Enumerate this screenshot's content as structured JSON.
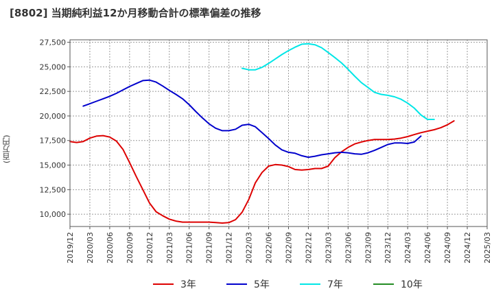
{
  "chart_data": {
    "type": "line",
    "title": "[8802]  当期純利益12か月移動合計の標準偏差の推移",
    "ylabel": "(百万円)",
    "xlabel": "",
    "ylim": [
      8750,
      27750
    ],
    "yticks": [
      10000,
      12500,
      15000,
      17500,
      20000,
      22500,
      25000,
      27500
    ],
    "ytick_labels": [
      "10,000",
      "12,500",
      "15,000",
      "17,500",
      "20,000",
      "22,500",
      "25,000",
      "27,500"
    ],
    "x_start": "2019-12",
    "x_months": 63,
    "xtick_labels": [
      "2019/12",
      "2020/03",
      "2020/06",
      "2020/09",
      "2020/12",
      "2021/03",
      "2021/06",
      "2021/09",
      "2021/12",
      "2022/03",
      "2022/06",
      "2022/09",
      "2022/12",
      "2023/03",
      "2023/06",
      "2023/09",
      "2023/12",
      "2024/03",
      "2024/06",
      "2024/09",
      "2024/12",
      "2025/03"
    ],
    "grid": true,
    "legend_position": "bottom",
    "series": [
      {
        "name": "3年",
        "color": "#dd0000",
        "start_index": 0,
        "values": [
          17400,
          17300,
          17400,
          17750,
          17950,
          18000,
          17850,
          17450,
          16600,
          15250,
          13850,
          12500,
          11150,
          10250,
          9850,
          9500,
          9300,
          9200,
          9200,
          9200,
          9200,
          9200,
          9150,
          9100,
          9150,
          9450,
          10200,
          11500,
          13200,
          14250,
          14900,
          15050,
          15000,
          14850,
          14550,
          14500,
          14550,
          14650,
          14650,
          14900,
          15750,
          16350,
          16800,
          17150,
          17350,
          17500,
          17600,
          17600,
          17600,
          17650,
          17750,
          17900,
          18100,
          18300,
          18450,
          18600,
          18800,
          19100,
          19500
        ]
      },
      {
        "name": "5年",
        "color": "#0000cc",
        "start_index": 2,
        "values": [
          21000,
          21250,
          21500,
          21750,
          22000,
          22300,
          22650,
          23000,
          23300,
          23600,
          23650,
          23450,
          23050,
          22600,
          22200,
          21750,
          21150,
          20450,
          19800,
          19200,
          18750,
          18500,
          18500,
          18650,
          19050,
          19150,
          18900,
          18300,
          17700,
          17050,
          16550,
          16300,
          16200,
          15950,
          15800,
          15900,
          16050,
          16150,
          16250,
          16300,
          16250,
          16150,
          16100,
          16250,
          16500,
          16800,
          17100,
          17250,
          17250,
          17200,
          17350,
          17950
        ]
      },
      {
        "name": "7年",
        "color": "#00e6e6",
        "start_index": 26,
        "values": [
          24850,
          24700,
          24700,
          24950,
          25350,
          25800,
          26250,
          26650,
          27000,
          27300,
          27350,
          27250,
          26950,
          26450,
          25950,
          25400,
          24750,
          24050,
          23400,
          22900,
          22400,
          22200,
          22100,
          21950,
          21700,
          21300,
          20800,
          20100,
          19650,
          19650
        ]
      },
      {
        "name": "10年",
        "color": "#228B22",
        "start_index": 0,
        "values": []
      }
    ]
  }
}
